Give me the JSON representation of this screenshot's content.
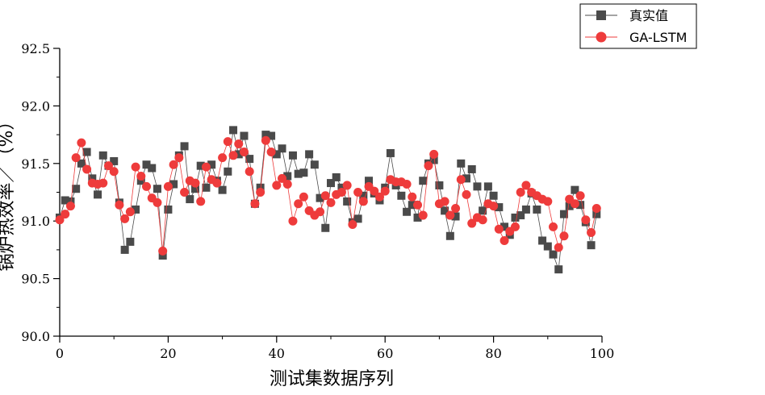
{
  "chart_data": {
    "type": "line",
    "xlabel": "测试集数据序列",
    "ylabel": "锅炉热效率／（%）",
    "xlim": [
      0,
      100
    ],
    "ylim": [
      90.0,
      92.5
    ],
    "xticks": [
      "0",
      "20",
      "40",
      "60",
      "80",
      "100"
    ],
    "yticks": [
      "90.0",
      "90.5",
      "91.0",
      "91.5",
      "92.0",
      "92.5"
    ],
    "legend_position": "top-right",
    "grid": false,
    "series": [
      {
        "name": "真实值",
        "color": "#4a4a4a",
        "marker": "square",
        "x": [
          0,
          1,
          2,
          3,
          4,
          5,
          6,
          7,
          8,
          9,
          10,
          11,
          12,
          13,
          14,
          15,
          16,
          17,
          18,
          19,
          20,
          21,
          22,
          23,
          24,
          25,
          26,
          27,
          28,
          29,
          30,
          31,
          32,
          33,
          34,
          35,
          36,
          37,
          38,
          39,
          40,
          41,
          42,
          43,
          44,
          45,
          46,
          47,
          48,
          49,
          50,
          51,
          52,
          53,
          54,
          55,
          56,
          57,
          58,
          59,
          60,
          61,
          62,
          63,
          64,
          65,
          66,
          67,
          68,
          69,
          70,
          71,
          72,
          73,
          74,
          75,
          76,
          77,
          78,
          79,
          80,
          81,
          82,
          83,
          84,
          85,
          86,
          87,
          88,
          89,
          90,
          91,
          92,
          93,
          94,
          95,
          96,
          97,
          98,
          99
        ],
        "values": [
          91.03,
          91.18,
          91.17,
          91.28,
          91.5,
          91.6,
          91.37,
          91.23,
          91.57,
          91.48,
          91.52,
          91.16,
          90.75,
          90.82,
          91.1,
          91.35,
          91.49,
          91.46,
          91.28,
          90.7,
          91.1,
          91.32,
          91.57,
          91.65,
          91.19,
          91.28,
          91.48,
          91.29,
          91.49,
          91.35,
          91.27,
          91.43,
          91.79,
          91.58,
          91.74,
          91.54,
          91.15,
          91.29,
          91.75,
          91.74,
          91.58,
          91.63,
          91.39,
          91.57,
          91.41,
          91.42,
          91.58,
          91.49,
          91.2,
          90.94,
          91.33,
          91.38,
          91.29,
          91.17,
          90.99,
          91.02,
          91.22,
          91.35,
          91.24,
          91.18,
          91.29,
          91.59,
          91.31,
          91.22,
          91.08,
          91.14,
          91.03,
          91.35,
          91.5,
          91.53,
          91.31,
          91.09,
          90.87,
          91.04,
          91.5,
          91.37,
          91.45,
          91.3,
          91.09,
          91.3,
          91.22,
          91.12,
          90.95,
          90.88,
          91.03,
          91.05,
          91.1,
          91.24,
          91.1,
          90.83,
          90.78,
          90.71,
          90.58,
          91.06,
          91.13,
          91.27,
          91.14,
          90.99,
          90.79,
          91.06
        ]
      },
      {
        "name": "GA-LSTM",
        "color": "#ee3b3b",
        "marker": "circle",
        "x": [
          0,
          1,
          2,
          3,
          4,
          5,
          6,
          7,
          8,
          9,
          10,
          11,
          12,
          13,
          14,
          15,
          16,
          17,
          18,
          19,
          20,
          21,
          22,
          23,
          24,
          25,
          26,
          27,
          28,
          29,
          30,
          31,
          32,
          33,
          34,
          35,
          36,
          37,
          38,
          39,
          40,
          41,
          42,
          43,
          44,
          45,
          46,
          47,
          48,
          49,
          50,
          51,
          52,
          53,
          54,
          55,
          56,
          57,
          58,
          59,
          60,
          61,
          62,
          63,
          64,
          65,
          66,
          67,
          68,
          69,
          70,
          71,
          72,
          73,
          74,
          75,
          76,
          77,
          78,
          79,
          80,
          81,
          82,
          83,
          84,
          85,
          86,
          87,
          88,
          89,
          90,
          91,
          92,
          93,
          94,
          95,
          96,
          97,
          98,
          99
        ],
        "values": [
          91.01,
          91.06,
          91.13,
          91.55,
          91.68,
          91.45,
          91.33,
          91.32,
          91.33,
          91.48,
          91.43,
          91.14,
          91.02,
          91.08,
          91.47,
          91.39,
          91.3,
          91.2,
          91.16,
          90.74,
          91.3,
          91.49,
          91.55,
          91.25,
          91.35,
          91.33,
          91.17,
          91.47,
          91.36,
          91.33,
          91.55,
          91.69,
          91.57,
          91.67,
          91.6,
          91.43,
          91.15,
          91.25,
          91.7,
          91.6,
          91.31,
          91.37,
          91.32,
          91.0,
          91.15,
          91.21,
          91.09,
          91.05,
          91.08,
          91.22,
          91.16,
          91.23,
          91.25,
          91.31,
          90.97,
          91.25,
          91.17,
          91.3,
          91.26,
          91.21,
          91.26,
          91.36,
          91.34,
          91.34,
          91.32,
          91.21,
          91.14,
          91.05,
          91.48,
          91.58,
          91.15,
          91.17,
          91.05,
          91.11,
          91.36,
          91.23,
          90.98,
          91.03,
          91.01,
          91.15,
          91.13,
          90.93,
          90.83,
          90.91,
          90.95,
          91.25,
          91.31,
          91.25,
          91.22,
          91.19,
          91.17,
          90.95,
          90.77,
          90.87,
          91.19,
          91.15,
          91.22,
          91.01,
          90.9,
          91.11
        ]
      }
    ]
  }
}
